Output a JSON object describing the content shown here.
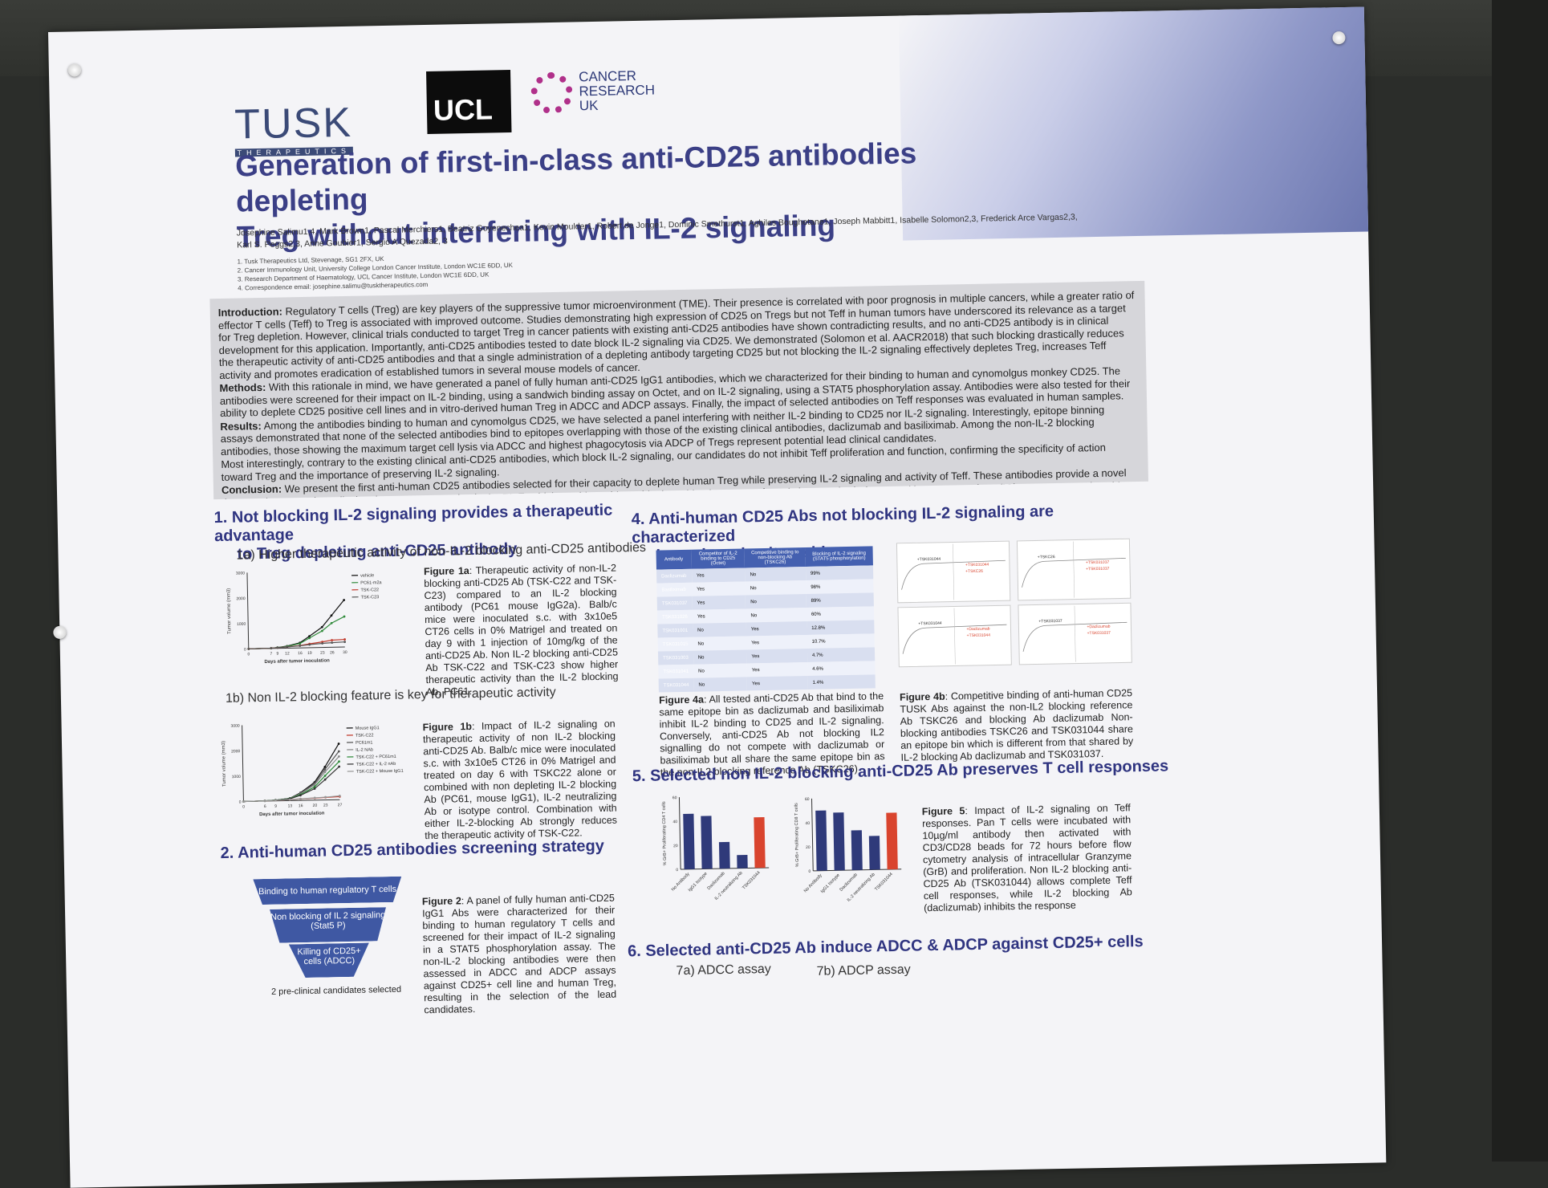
{
  "header": {
    "logos": [
      "TUSK",
      "UCL",
      "CANCER RESEARCH UK"
    ],
    "tusk_tagline": "THERAPEUTICS",
    "title_line1": "Generation of first-in-class anti-CD25 antibodies depleting",
    "title_line2": "Treg without interfering with IL-2 signaling",
    "authors_line1": "Josephine Salimu1,4, Mark Brown1, Pascal Merchiers1, Beatriz Goyenechea1, Kevin Moulder1, Robert de Jonge1, Dominic Smethurst1, Aghiles Boughetane1, Joseph Mabbitt1, Isabelle Solomon2,3, Frederick Arce Vargas2,3,",
    "authors_line2": "Karl S. Peggs2,3, Anne Goubier1, Sergio A Quezada2, 3",
    "affiliations": [
      "1. Tusk Therapeutics Ltd, Stevenage, SG1 2FX, UK",
      "2. Cancer Immunology Unit, University College London Cancer Institute, London WC1E 6DD, UK",
      "3. Research Department of Haematology, UCL Cancer Institute, London WC1E 6DD, UK",
      "4. Correspondence email: josephine.salimu@tusktherapeutics.com"
    ]
  },
  "abstract": {
    "intro_label": "Introduction:",
    "intro": "Regulatory T cells (Treg) are key players of the suppressive tumor microenvironment (TME). Their presence is correlated with poor prognosis in multiple cancers, while a greater ratio of effector T cells (Teff) to Treg is associated with improved outcome. Studies demonstrating high expression of CD25 on Tregs but not Teff in human tumors have underscored its relevance as a target for Treg depletion. However, clinical trials conducted to target Treg in cancer patients with existing anti-CD25 antibodies have shown contradicting results, and no anti-CD25 antibody is in clinical development for this application. Importantly, anti-CD25 antibodies tested to date block IL-2 signaling via CD25. We demonstrated (Solomon et al. AACR2018) that such blocking drastically reduces the therapeutic activity of anti-CD25 antibodies and that a single administration of a depleting antibody targeting CD25 but not blocking the IL-2 signaling effectively depletes Treg, increases Teff activity and promotes eradication of established tumors in several mouse models of cancer.",
    "methods_label": "Methods:",
    "methods": "With this rationale in mind, we have generated a panel of fully human anti-CD25 IgG1 antibodies, which we characterized for their binding to human and cynomolgus monkey CD25. The antibodies were screened for their impact on IL-2 binding, using a sandwich binding assay on Octet, and on IL-2 signaling, using a STAT5 phosphorylation assay. Antibodies were also tested for their ability to deplete CD25 positive cell lines and in vitro-derived human Treg in ADCC and ADCP assays. Finally, the impact of selected antibodies on Teff responses was evaluated in human samples.",
    "results_label": "Results:",
    "results": "Among the antibodies binding to human and cynomolgus CD25, we have selected a panel interfering with neither IL-2 binding to CD25 nor IL-2 signaling. Interestingly, epitope binning assays demonstrated that none of the selected antibodies bind to epitopes overlapping with those of the existing clinical antibodies, daclizumab and basiliximab. Among the non-IL-2 blocking antibodies, those showing the maximum target cell lysis via ADCC and highest phagocytosis via ADCP of Tregs represent potential lead clinical candidates.",
    "results2": "Most interestingly, contrary to the existing clinical anti-CD25 antibodies, which block IL-2 signaling, our candidates do not inhibit Teff proliferation and function, confirming the specificity of action toward Treg and the importance of preserving IL-2 signaling.",
    "conclusion_label": "Conclusion:",
    "conclusion": "We present the first anti-human CD25 antibodies selected for their capacity to deplete human Treg while preserving IL-2 signaling and activity of Teff. These antibodies provide a novel therapeutic approach to alleviate immune suppression in the TME, which would provide an ideal combination partner for existing standard of care and immuno-oncology (IO) treatments, and could potentially be used as a monotherapy."
  },
  "section1": {
    "title_line1": "1.  Not blocking IL-2 signaling provides a therapeutic advantage",
    "title_line2": "to Treg depleting anti-CD25 antibody",
    "sub_a": "1a) Higher therapeutic activity of non-IL-2 blocking anti-CD25 antibodies",
    "fig1a_label": "Figure 1a",
    "fig1a": ": Therapeutic activity of non-IL-2 blocking anti-CD25 Ab (TSK-C22 and TSK-C23) compared to an IL-2 blocking antibody (PC61 mouse IgG2a). Balb/c mice were inoculated s.c. with 3x10e5 CT26 cells in 0% Matrigel and treated on day 9 with 1 injection of 10mg/kg of the anti-CD25 Ab. Non IL-2 blocking anti-CD25 Ab TSK-C22 and TSK-C23 show higher therapeutic activity than the IL-2 blocking Ab, PC61.",
    "plot1a_legend": [
      "vehicle",
      "PC61-m2a",
      "TSK-C22",
      "TSK-C23"
    ],
    "plot1a_xlabel": "Days after tumor inoculation",
    "plot1a_ylabel": "Tumor volume (mm3)",
    "sub_b": "1b) Non IL-2 blocking feature is key for therapeutic activity",
    "fig1b_label": "Figure 1b",
    "fig1b": ": Impact of IL-2 signaling on therapeutic activity of non IL-2 blocking anti-CD25 Ab. Balb/c mice were inoculated s.c. with 3x10e5 CT26 in 0% Matrigel and treated on day 6 with TSKC22 alone or combined with non depleting IL-2 blocking Ab (PC61, mouse IgG1), IL-2 neutralizing Ab or isotype control. Combination with either IL-2-blocking Ab strongly reduces the therapeutic activity of TSK-C22.",
    "plot1b_legend": [
      "Mouse IgG1",
      "TSK-C22",
      "PC61m1",
      "IL-2 NAb",
      "TSK-C22 + PC61m1",
      "TSK-C22 + IL-2 nAb",
      "TSK-C22 + Mouse IgG1"
    ],
    "plot1b_xlabel": "Days after tumor inoculation",
    "plot1b_ylabel": "Tumor volume (mm3)"
  },
  "section2": {
    "title": "2.  Anti-human CD25 antibodies screening strategy",
    "funnel": [
      "Binding to human regulatory T cells",
      "Non blocking of IL 2 signaling (Stat5 P)",
      "Killing of CD25+ cells (ADCC)"
    ],
    "funnel_result": "2 pre-clinical candidates selected",
    "fig2_label": "Figure 2",
    "fig2": ": A panel of fully human anti-CD25 IgG1 Abs were characterized for their binding to human regulatory T cells and screened for their impact of IL-2 signaling in a STAT5 phosphorylation assay. The non-IL-2 blocking antibodies were then assessed in ADCC and ADCP assays against CD25+ cell line and human Treg, resulting in the selection of the lead candidates."
  },
  "section4": {
    "title_line1": "4.  Anti-human CD25 Abs not blocking IL-2 signaling are characterized",
    "title_line2": "by a shared epitope bin",
    "table_headers": [
      "Antibody",
      "Competitor of IL-2 binding to CD25 (Octet)",
      "Competitive binding to non-blocking Ab (TSKC26)",
      "Blocking of IL-2 signaling (STAT5 phosphorylation)"
    ],
    "table_rows": [
      [
        "Daclizumab",
        "Yes",
        "No",
        "99%"
      ],
      [
        "Basiliximab",
        "Yes",
        "No",
        "98%"
      ],
      [
        "TSK031037",
        "Yes",
        "No",
        "89%"
      ],
      [
        "TSK031026",
        "Yes",
        "No",
        "60%"
      ],
      [
        "TSK031001",
        "No",
        "Yes",
        "12.8%"
      ],
      [
        "TSK031015",
        "No",
        "Yes",
        "10.7%"
      ],
      [
        "TSK031003",
        "No",
        "Yes",
        "4.7%"
      ],
      [
        "TSK031041",
        "No",
        "Yes",
        "4.6%"
      ],
      [
        "TSK031044",
        "No",
        "Yes",
        "1.4%"
      ]
    ],
    "fig4a_label": "Figure 4a",
    "fig4a": ": All tested anti-CD25 Ab that bind to the same epitope bin as daclizumab and basiliximab inhibit IL-2 binding to CD25 and IL-2 signaling. Conversely, anti-CD25 Ab not blocking IL2 signalling do not compete with daclizumab or basiliximab but all share the same epitope bin as the non-IL2 blocking reference Ab (TSKC26)",
    "sensor_labels": [
      "+TSK031044",
      "+TSK031044",
      "+TSKC26",
      "+TSKC26",
      "+TSK031037",
      "+TSK031037",
      "+TSK031044",
      "+Daclizumab",
      "+TSK031044",
      "+TSK031037",
      "+Daclizumab",
      "+TSK031037"
    ],
    "fig4b_label": "Figure 4b",
    "fig4b": ": Competitive binding of anti-human CD25 TUSK Abs against the non-IL2 blocking reference Ab TSKC26 and blocking Ab daclizumab Non-blocking antibodies TSKC26 and TSK031044 share an epitope bin which is different from that shared by IL-2 blocking Ab daclizumab and TSK031037."
  },
  "section5": {
    "title": "5.  Selected non IL-2 blocking anti-CD25 Ab preserves T cell responses",
    "categories": [
      "No Antibody",
      "IgG1 Isotype",
      "Daclizumab",
      "IL-2 neutralizing Ab",
      "TSK031044"
    ],
    "ylabel_cd4": "% GrB+ Proliferating CD4 T cells",
    "ylabel_cd8": "% GrB+ Proliferating CD8 T cells",
    "fig5_label": "Figure 5",
    "fig5": ": Impact of IL-2 signaling on Teff responses. Pan T cells were incubated with 10µg/ml antibody then activated with CD3/CD28 beads for 72 hours before flow cytometry analysis of intracellular Granzyme (GrB) and proliferation. Non IL-2 blocking anti-CD25 Ab (TSK031044) allows complete Teff cell responses, while IL-2 blocking Ab (daclizumab) inhibits the response",
    "colors": {
      "bar": "#2f3a7a",
      "highlight": "#d9442e"
    }
  },
  "section6": {
    "title": "6.  Selected anti-CD25 Ab induce ADCC & ADCP against CD25+ cells",
    "sub_a": "7a) ADCC assay",
    "sub_b": "7b) ADCP assay"
  },
  "chart_data": [
    {
      "type": "line",
      "title": "",
      "xlabel": "Days after tumor inoculation",
      "ylabel": "Tumor volume (mm3)",
      "x": [
        0,
        7,
        9,
        12,
        16,
        19,
        23,
        26,
        30
      ],
      "ylim": [
        0,
        3000
      ],
      "series": [
        {
          "name": "vehicle",
          "values": [
            0,
            10,
            30,
            80,
            200,
            450,
            800,
            1250,
            1850
          ]
        },
        {
          "name": "PC61-m2a",
          "values": [
            0,
            10,
            30,
            70,
            170,
            380,
            650,
            950,
            1200
          ]
        },
        {
          "name": "TSK-C22",
          "values": [
            0,
            10,
            25,
            50,
            90,
            150,
            220,
            280,
            300
          ]
        },
        {
          "name": "TSK-C23",
          "values": [
            0,
            10,
            25,
            50,
            80,
            120,
            160,
            180,
            200
          ]
        }
      ]
    },
    {
      "type": "line",
      "title": "",
      "xlabel": "Days after tumor inoculation",
      "ylabel": "Tumor volume (mm3)",
      "x": [
        0,
        6,
        9,
        13,
        16,
        20,
        23,
        27
      ],
      "ylim": [
        0,
        3000
      ],
      "series": [
        {
          "name": "Mouse IgG1",
          "values": [
            0,
            10,
            30,
            90,
            300,
            700,
            1300,
            2200
          ]
        },
        {
          "name": "TSK-C22",
          "values": [
            0,
            10,
            20,
            40,
            60,
            80,
            100,
            120
          ]
        },
        {
          "name": "PC61m1",
          "values": [
            0,
            10,
            30,
            90,
            280,
            650,
            1200,
            1900
          ]
        },
        {
          "name": "IL-2 NAb",
          "values": [
            0,
            10,
            30,
            80,
            260,
            600,
            1100,
            1700
          ]
        },
        {
          "name": "TSK-C22 + PC61m1",
          "values": [
            0,
            10,
            30,
            80,
            230,
            520,
            950,
            1500
          ]
        },
        {
          "name": "TSK-C22 + IL-2 nAb",
          "values": [
            0,
            10,
            25,
            70,
            200,
            450,
            800,
            1300
          ]
        },
        {
          "name": "TSK-C22 + Mouse IgG1",
          "values": [
            0,
            10,
            20,
            40,
            60,
            90,
            110,
            150
          ]
        }
      ]
    },
    {
      "type": "bar",
      "title": "",
      "ylabel": "% GrB+ Proliferating CD4 T cells",
      "categories": [
        "No Antibody",
        "IgG1 Isotype",
        "Daclizumab",
        "IL-2 neutralizing Ab",
        "TSK031044"
      ],
      "values": [
        46,
        44,
        22,
        11,
        42
      ],
      "ylim": [
        0,
        60
      ]
    },
    {
      "type": "bar",
      "title": "",
      "ylabel": "% GrB+ Proliferating CD8 T cells",
      "categories": [
        "No Antibody",
        "IgG1 Isotype",
        "Daclizumab",
        "IL-2 neutralizing Ab",
        "TSK031044"
      ],
      "values": [
        50,
        48,
        33,
        28,
        47
      ],
      "ylim": [
        0,
        60
      ]
    }
  ]
}
